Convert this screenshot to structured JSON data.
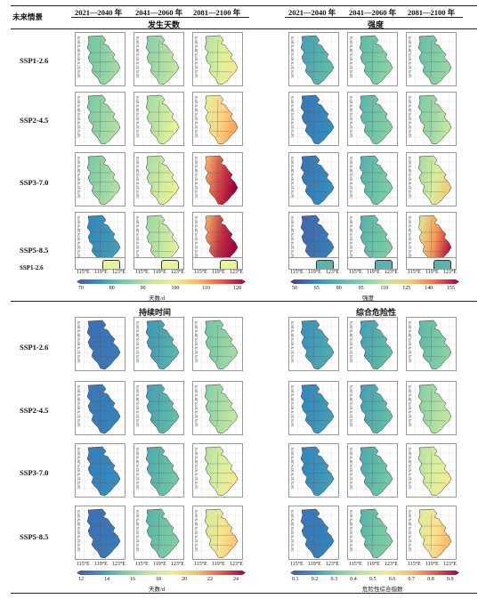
{
  "header": {
    "scenario_col": "未来情景",
    "periods": [
      "2021—2040 年",
      "2041—2060 年",
      "2081—2100 年"
    ]
  },
  "scenarios": [
    "SSP1-2.6",
    "SSP2-4.5",
    "SSP3-7.0",
    "SSP5-8.5"
  ],
  "partial_label": "SSP1-2.6",
  "panels": {
    "occurrence": {
      "title": "发生天数",
      "colorbar": {
        "label": "天数/d",
        "ticks": [
          "70",
          "80",
          "90",
          "100",
          "110",
          "120"
        ]
      },
      "levels": [
        [
          0.35,
          0.42,
          0.55
        ],
        [
          0.38,
          0.5,
          0.72
        ],
        [
          0.38,
          0.52,
          0.98
        ],
        [
          0.15,
          0.48,
          1.0
        ]
      ]
    },
    "intensity": {
      "title": "强度",
      "colorbar": {
        "label": "强度",
        "ticks": [
          "50",
          "65",
          "80",
          "95",
          "110",
          "125",
          "140",
          "155"
        ]
      },
      "levels": [
        [
          0.3,
          0.42,
          0.45
        ],
        [
          0.15,
          0.4,
          0.55
        ],
        [
          0.15,
          0.38,
          0.68
        ],
        [
          0.12,
          0.38,
          0.88
        ]
      ]
    },
    "duration": {
      "title": "持续时间",
      "colorbar": {
        "label": "天数/d",
        "ticks": [
          "12",
          "14",
          "16",
          "18",
          "20",
          "22",
          "24"
        ]
      },
      "levels": [
        [
          0.08,
          0.2,
          0.35
        ],
        [
          0.1,
          0.22,
          0.42
        ],
        [
          0.12,
          0.25,
          0.55
        ],
        [
          0.08,
          0.28,
          0.65
        ]
      ]
    },
    "risk": {
      "title": "综合危险性",
      "colorbar": {
        "label": "危险性综合指数",
        "ticks": [
          "0.1",
          "0.2",
          "0.3",
          "0.4",
          "0.5",
          "0.6",
          "0.7",
          "0.8",
          "0.9"
        ]
      },
      "levels": [
        [
          0.18,
          0.22,
          0.3
        ],
        [
          0.15,
          0.22,
          0.42
        ],
        [
          0.15,
          0.25,
          0.55
        ],
        [
          0.1,
          0.28,
          0.68
        ]
      ]
    }
  },
  "lat_labels": [
    "34°N",
    "32°N",
    "30°N",
    "28°N",
    "26°N"
  ],
  "lon_labels": [
    "115°E",
    "119°E",
    "123°E"
  ]
}
